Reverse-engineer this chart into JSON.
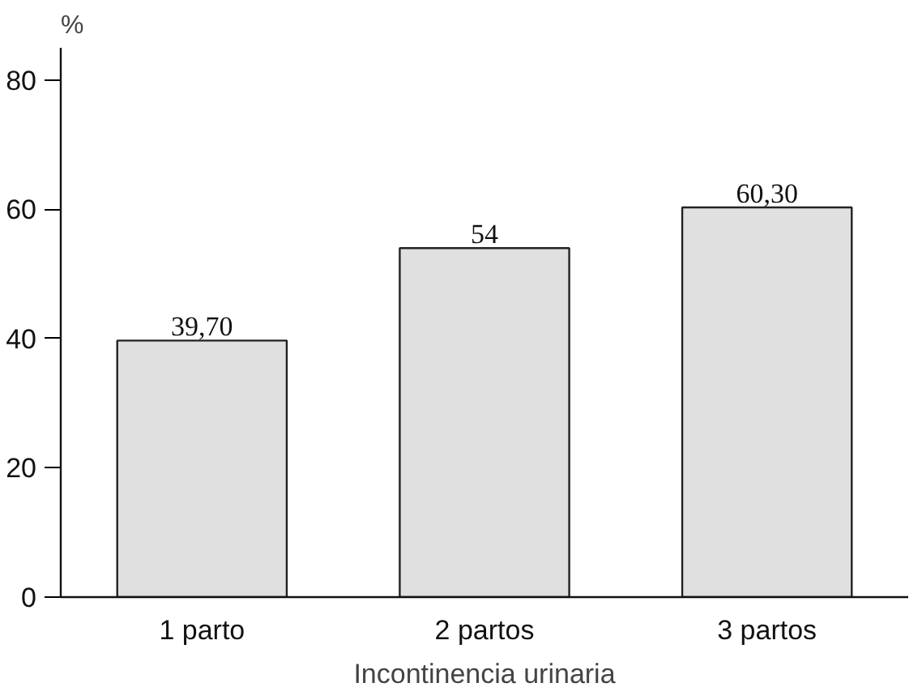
{
  "chart_data": {
    "type": "bar",
    "ylabel": "%",
    "xlabel": "Incontinencia urinaria",
    "categories": [
      "1 parto",
      "2 partos",
      "3 partos"
    ],
    "values": [
      39.7,
      54,
      60.3
    ],
    "value_labels": [
      "39,70",
      "54",
      "60,30"
    ],
    "color": "#e0e0e0",
    "ylim": [
      0,
      85
    ],
    "yticks": [
      0,
      20,
      40,
      60,
      80
    ],
    "grid": false
  }
}
